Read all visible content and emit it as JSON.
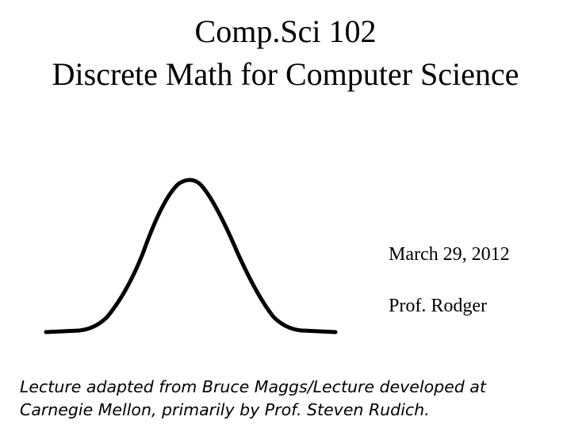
{
  "title": {
    "line1": "Comp.Sci 102",
    "line2": "Discrete Math for Computer Science"
  },
  "info": {
    "date": "March 29, 2012",
    "author": "Prof. Rodger"
  },
  "footer": {
    "line1": "Lecture adapted from Bruce Maggs/Lecture developed at",
    "line2": "Carnegie Mellon, primarily by Prof. Steven Rudich."
  }
}
